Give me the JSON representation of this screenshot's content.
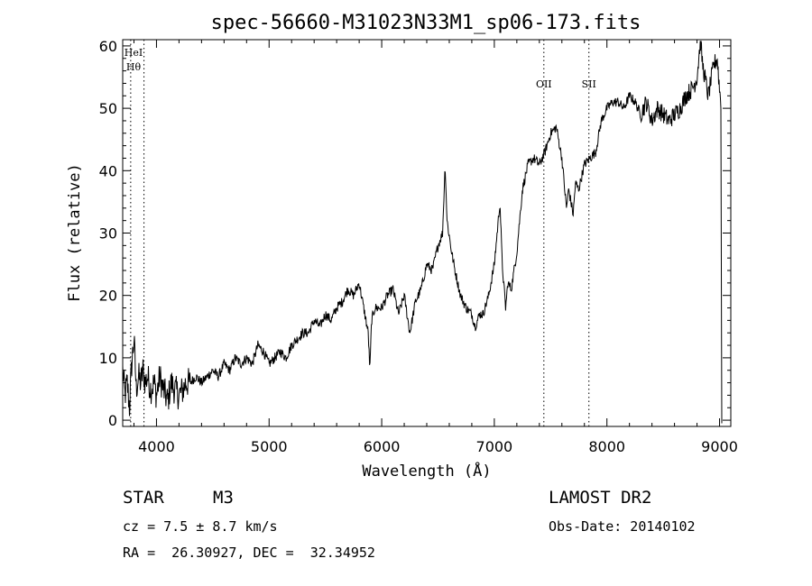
{
  "chart_data": {
    "type": "line",
    "title": "spec-56660-M31023N33M1_sp06-173.fits",
    "xlabel": "Wavelength (Å)",
    "ylabel": "Flux (relative)",
    "xlim": [
      3700,
      9100
    ],
    "ylim": [
      -1,
      61
    ],
    "x_ticks": [
      4000,
      5000,
      6000,
      7000,
      8000,
      9000
    ],
    "y_ticks": [
      0,
      10,
      20,
      30,
      40,
      50,
      60
    ],
    "grid": false,
    "series": [
      {
        "x": [
          3700,
          3720,
          3740,
          3760,
          3780,
          3800,
          3820,
          3840,
          3860,
          3880,
          3900,
          3920,
          3950,
          3980,
          4000,
          4030,
          4060,
          4100,
          4130,
          4160,
          4200,
          4240,
          4260,
          4300,
          4350,
          4400,
          4450,
          4500,
          4550,
          4600,
          4650,
          4700,
          4750,
          4800,
          4850,
          4900,
          4950,
          5000,
          5050,
          5100,
          5150,
          5200,
          5250,
          5300,
          5350,
          5400,
          5450,
          5500,
          5550,
          5600,
          5650,
          5700,
          5750,
          5800,
          5850,
          5880,
          5895,
          5910,
          5940,
          6000,
          6050,
          6100,
          6150,
          6200,
          6250,
          6300,
          6350,
          6400,
          6450,
          6500,
          6540,
          6563,
          6580,
          6620,
          6650,
          6700,
          6750,
          6800,
          6830,
          6870,
          6900,
          6950,
          7000,
          7030,
          7050,
          7070,
          7100,
          7120,
          7150,
          7200,
          7250,
          7300,
          7350,
          7400,
          7450,
          7500,
          7550,
          7570,
          7600,
          7640,
          7660,
          7700,
          7720,
          7750,
          7800,
          7850,
          7900,
          7950,
          8000,
          8050,
          8100,
          8150,
          8200,
          8250,
          8300,
          8350,
          8400,
          8450,
          8500,
          8550,
          8600,
          8650,
          8700,
          8750,
          8780,
          8800,
          8830,
          8850,
          8870,
          8900,
          8950,
          8980,
          9000,
          9020
        ],
        "y": [
          8,
          4,
          6,
          2,
          9,
          13,
          5,
          7,
          6,
          8,
          6,
          7,
          5,
          6,
          4,
          7,
          5,
          3,
          6,
          5,
          4,
          5,
          6,
          6,
          7,
          6,
          7,
          8,
          7,
          9,
          8,
          10,
          9,
          10,
          9,
          12,
          11,
          9,
          10,
          11,
          10,
          12,
          13,
          14,
          14,
          16,
          15,
          17,
          16,
          18,
          19,
          21,
          20,
          22,
          17,
          14,
          8,
          16,
          18,
          18,
          20,
          21,
          17,
          20,
          14,
          19,
          21,
          25,
          24,
          28,
          30,
          41,
          32,
          27,
          24,
          20,
          18,
          17,
          15,
          17,
          17,
          20,
          25,
          31,
          35,
          25,
          18,
          22,
          21,
          27,
          37,
          41,
          42,
          41,
          43,
          46,
          47,
          45,
          42,
          34,
          37,
          33,
          38,
          37,
          41,
          42,
          43,
          48,
          50,
          51,
          51,
          50,
          52,
          51,
          49,
          51,
          48,
          50,
          49,
          48,
          49,
          50,
          52,
          53,
          54,
          55,
          61,
          57,
          55,
          52,
          57,
          58,
          53,
          50
        ]
      }
    ],
    "vertical_lines": [
      {
        "x": 3771,
        "label": "HeI"
      },
      {
        "x": 3889,
        "label": "Hθ"
      },
      {
        "x": 7440,
        "label": "OII"
      },
      {
        "x": 7840,
        "label": "SII"
      }
    ]
  },
  "info": {
    "object_class": "STAR",
    "subclass": "M3",
    "survey": "LAMOST DR2",
    "redshift_line": "cz = 7.5 ± 8.7 km/s",
    "obs_date": "Obs-Date: 20140102",
    "coords": "RA =  26.30927, DEC =  32.34952"
  }
}
